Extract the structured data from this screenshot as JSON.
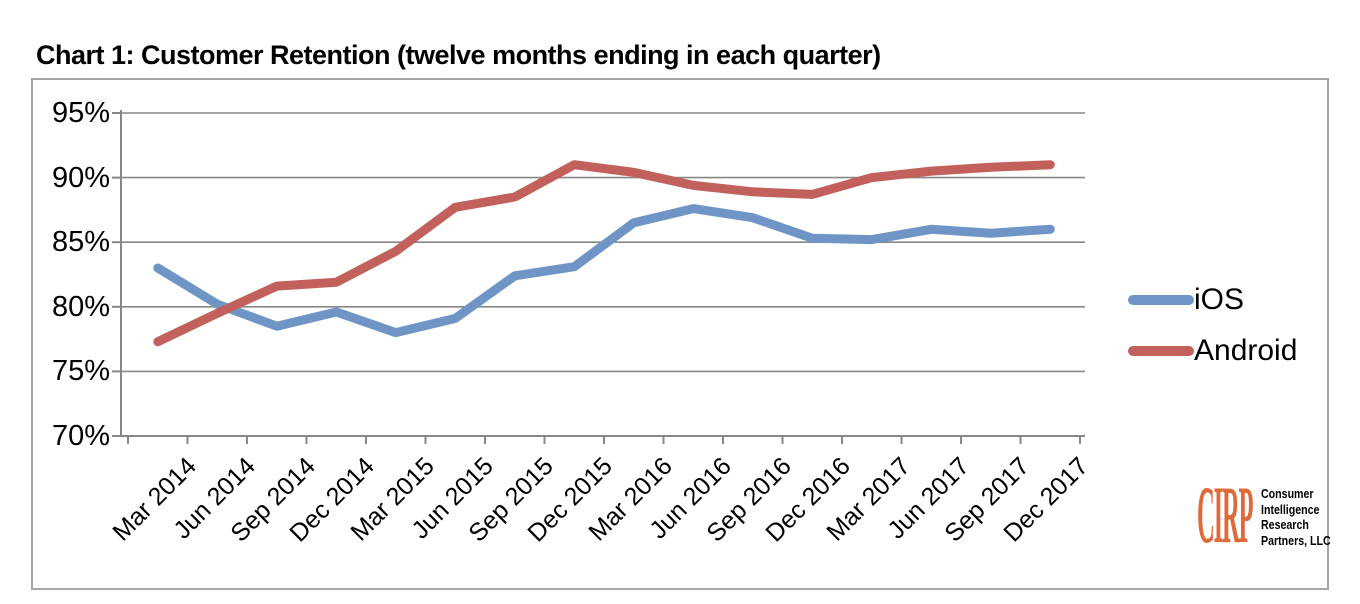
{
  "chart_data": {
    "type": "line",
    "title": "Chart 1: Customer Retention (twelve months ending in each quarter)",
    "categories": [
      "Mar 2014",
      "Jun 2014",
      "Sep 2014",
      "Dec 2014",
      "Mar 2015",
      "Jun 2015",
      "Sep 2015",
      "Dec 2015",
      "Mar 2016",
      "Jun 2016",
      "Sep 2016",
      "Dec 2016",
      "Mar 2017",
      "Jun 2017",
      "Sep 2017",
      "Dec 2017"
    ],
    "series": [
      {
        "name": "iOS",
        "color": "#6E95C5",
        "values": [
          83.0,
          80.2,
          78.5,
          79.6,
          78.0,
          79.1,
          82.4,
          83.1,
          86.5,
          87.6,
          86.9,
          85.3,
          85.2,
          86.0,
          85.7,
          86.0
        ]
      },
      {
        "name": "Android",
        "color": "#C2605B",
        "values": [
          77.3,
          79.5,
          81.6,
          81.9,
          84.3,
          87.7,
          88.5,
          91.0,
          90.4,
          89.4,
          88.9,
          88.7,
          90.0,
          90.5,
          90.8,
          91.0
        ]
      }
    ],
    "ylim": [
      70,
      95
    ],
    "yticks": [
      95,
      90,
      85,
      80,
      75,
      70
    ],
    "ytick_labels": [
      "95%",
      "90%",
      "85%",
      "80%",
      "75%",
      "70%"
    ],
    "grid": true,
    "legend_position": "right",
    "axis_color": "#878787",
    "frame_color": "#a6a6a6"
  },
  "logo": {
    "brand": "CIRP",
    "brand_color": "#E0693A",
    "lines": [
      "Consumer",
      "Intelligence",
      "Research",
      "Partners, LLC"
    ]
  }
}
